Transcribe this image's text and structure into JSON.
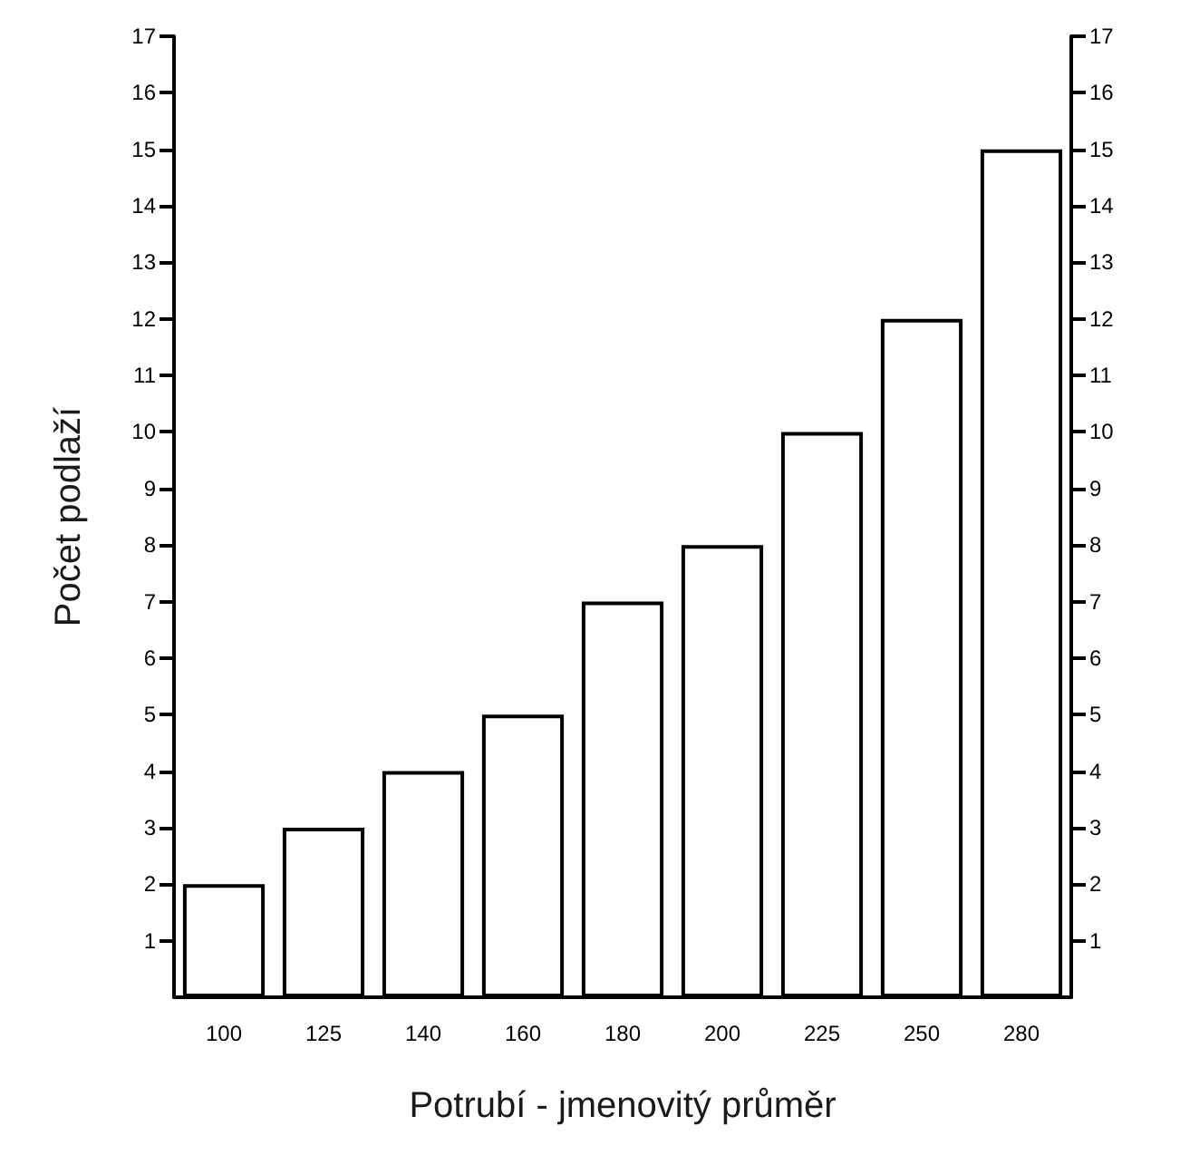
{
  "chart_data": {
    "type": "bar",
    "xlabel": "Potrubí - jmenovitý průměr",
    "ylabel": "Počet podlaží",
    "categories": [
      "100",
      "125",
      "140",
      "160",
      "180",
      "200",
      "225",
      "250",
      "280"
    ],
    "values": [
      2,
      3,
      4,
      5,
      7,
      8,
      10,
      12,
      15
    ],
    "color": "#000000",
    "ylim": [
      0,
      17
    ],
    "yticks": [
      1,
      2,
      3,
      4,
      5,
      6,
      7,
      8,
      9,
      10,
      11,
      12,
      13,
      14,
      15,
      16,
      17
    ],
    "y2lim": [
      0,
      17
    ],
    "y2ticks": [
      1,
      2,
      3,
      4,
      5,
      6,
      7,
      8,
      9,
      10,
      11,
      12,
      13,
      14,
      15,
      16,
      17
    ],
    "grid": false
  }
}
